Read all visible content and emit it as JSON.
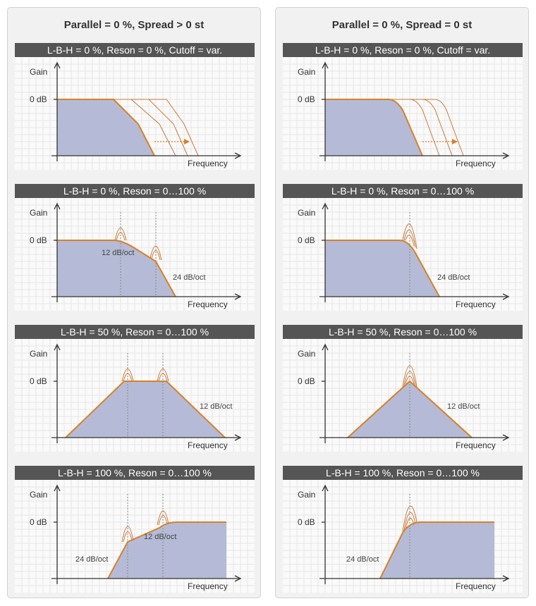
{
  "colors": {
    "panel_bg": "#fafafa",
    "grid": "#e6e6e6",
    "fill": "#b5bbd6",
    "curve": "#d98027",
    "curve_light": "#c97a3a",
    "axis": "#333333",
    "header_bg": "#555555",
    "marker": "#8a8a8a"
  },
  "columns": [
    {
      "title": "Parallel = 0 %, Spread > 0 st",
      "panels": [
        {
          "header": "L-B-H = 0 %, Reson = 0 %, Cutoff = var.",
          "gain_label": "Gain",
          "zero_label": "0 dB",
          "freq_label": "Frequency",
          "slope_labels": []
        },
        {
          "header": "L-B-H = 0 %, Reson = 0…100 %",
          "gain_label": "Gain",
          "zero_label": "0 dB",
          "freq_label": "Frequency",
          "slope_labels": [
            "12 dB/oct",
            "24 dB/oct"
          ]
        },
        {
          "header": "L-B-H = 50 %, Reson = 0…100 %",
          "gain_label": "Gain",
          "zero_label": "0 dB",
          "freq_label": "Frequency",
          "slope_labels": [
            "12 dB/oct"
          ]
        },
        {
          "header": "L-B-H = 100 %, Reson = 0…100 %",
          "gain_label": "Gain",
          "zero_label": "0 dB",
          "freq_label": "Frequency",
          "slope_labels": [
            "12 dB/oct",
            "24 dB/oct"
          ]
        }
      ]
    },
    {
      "title": "Parallel = 0 %, Spread = 0 st",
      "panels": [
        {
          "header": "L-B-H = 0 %, Reson = 0 %, Cutoff = var.",
          "gain_label": "Gain",
          "zero_label": "0 dB",
          "freq_label": "Frequency",
          "slope_labels": []
        },
        {
          "header": "L-B-H = 0 %, Reson = 0…100 %",
          "gain_label": "Gain",
          "zero_label": "0 dB",
          "freq_label": "Frequency",
          "slope_labels": [
            "24 dB/oct"
          ]
        },
        {
          "header": "L-B-H = 50 %, Reson = 0…100 %",
          "gain_label": "Gain",
          "zero_label": "0 dB",
          "freq_label": "Frequency",
          "slope_labels": [
            "12 dB/oct"
          ]
        },
        {
          "header": "L-B-H = 100 %, Reson = 0…100 %",
          "gain_label": "Gain",
          "zero_label": "0 dB",
          "freq_label": "Frequency",
          "slope_labels": [
            "24 dB/oct"
          ]
        }
      ]
    }
  ]
}
